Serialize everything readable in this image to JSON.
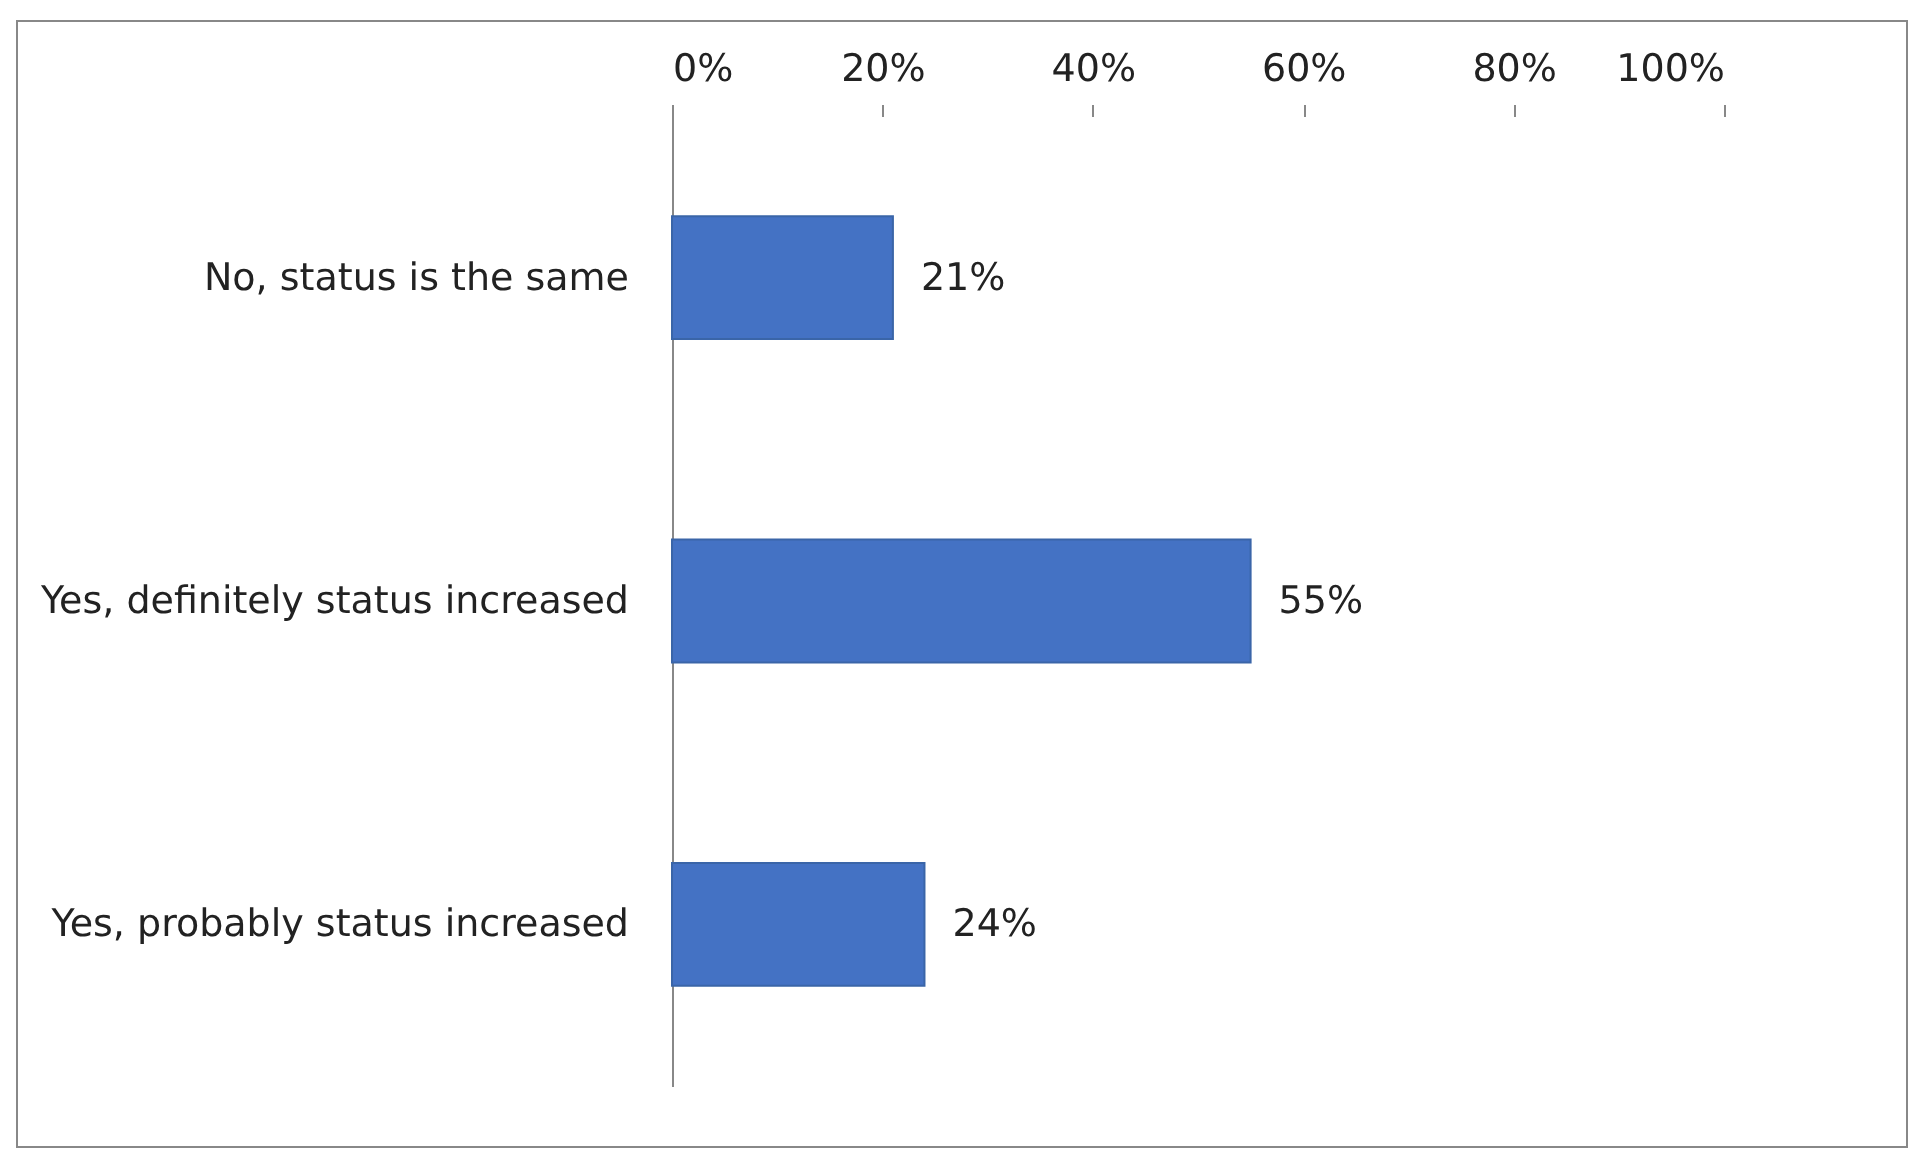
{
  "chart_data": {
    "type": "bar",
    "orientation": "horizontal",
    "categories": [
      "No, status is the same",
      "Yes, definitely status increased",
      "Yes, probably status increased"
    ],
    "values": [
      21,
      55,
      24
    ],
    "color": "#4472c4",
    "value_labels": [
      "21%",
      "55%",
      "24%"
    ],
    "xlim": [
      0,
      100
    ],
    "xticks": [
      {
        "value": 0,
        "label": "0%"
      },
      {
        "value": 20,
        "label": "20%"
      },
      {
        "value": 40,
        "label": "40%"
      },
      {
        "value": 60,
        "label": "60%"
      },
      {
        "value": 80,
        "label": "80%"
      },
      {
        "value": 100,
        "label": "100%"
      }
    ],
    "grid": false
  }
}
